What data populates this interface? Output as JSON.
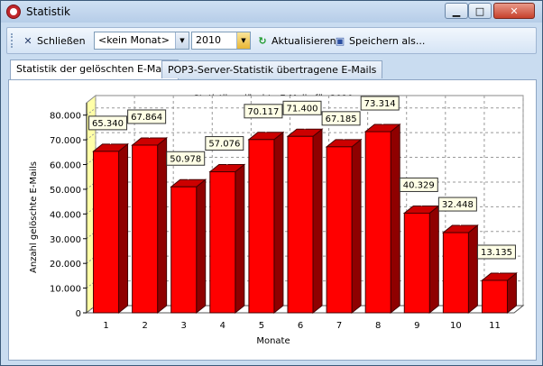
{
  "window": {
    "title": "Statistik"
  },
  "title_buttons": {
    "minimize": "▁",
    "maximize": "□",
    "close": "✕"
  },
  "toolbar": {
    "close_label": "Schließen",
    "month_value": "<kein Monat>",
    "year_value": "2010",
    "refresh_label": "Aktualisieren",
    "save_label": "Speichern als..."
  },
  "tabs": [
    {
      "label": "Statistik der gelöschten E-Mails",
      "active": true
    },
    {
      "label": "POP3-Server-Statistik übertragene E-Mails",
      "active": false
    }
  ],
  "colors": {
    "bar_front": "#ff0000",
    "bar_top": "#cc0000",
    "bar_side": "#8f0000",
    "wall": "#ffffa8",
    "label_bg": "#ffffe6"
  },
  "chart_data": {
    "type": "bar",
    "title": "Statistik gelöschte E-Mails für 2010",
    "xlabel": "Monate",
    "ylabel": "Anzahl gelöschte E-Mails",
    "categories": [
      "1",
      "2",
      "3",
      "4",
      "5",
      "6",
      "7",
      "8",
      "9",
      "10",
      "11"
    ],
    "values": [
      65340,
      67864,
      50978,
      57076,
      70117,
      71400,
      67185,
      73314,
      40329,
      32448,
      13135
    ],
    "value_labels": [
      "65.340",
      "67.864",
      "50.978",
      "57.076",
      "70.117",
      "71.400",
      "67.185",
      "73.314",
      "40.329",
      "32.448",
      "13.135"
    ],
    "yticks": [
      0,
      10000,
      20000,
      30000,
      40000,
      50000,
      60000,
      70000,
      80000
    ],
    "ytick_labels": [
      "0",
      "10.000",
      "20.000",
      "30.000",
      "40.000",
      "50.000",
      "60.000",
      "70.000",
      "80.000"
    ],
    "ylim": [
      0,
      85000
    ],
    "grid": true,
    "style": "3d"
  }
}
